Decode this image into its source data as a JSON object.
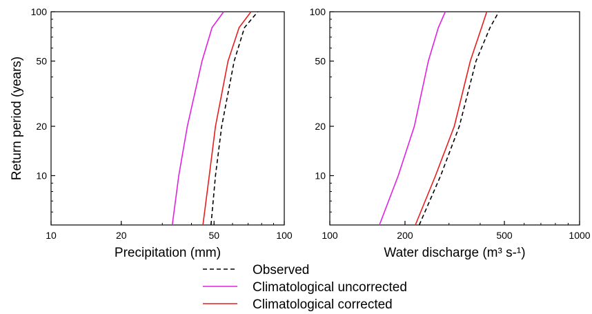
{
  "chart_data": [
    {
      "type": "line",
      "xscale": "log",
      "yscale": "log",
      "xlabel": "Precipitation (mm)",
      "ylabel": "Return period (years)",
      "xlim": [
        10,
        100
      ],
      "ylim": [
        5,
        100
      ],
      "xticks": [
        10,
        20,
        50,
        100
      ],
      "yticks": [
        10,
        20,
        50,
        100
      ],
      "grid": false,
      "series": [
        {
          "name": "Observed",
          "color": "#000000",
          "dash": "dashed",
          "points": [
            [
              48.5,
              5
            ],
            [
              50.7,
              10
            ],
            [
              53.9,
              20
            ],
            [
              61.0,
              50
            ],
            [
              67.5,
              80
            ],
            [
              77.0,
              100
            ]
          ]
        },
        {
          "name": "Climatological uncorrected",
          "color": "#e020e0",
          "dash": "solid",
          "points": [
            [
              33.1,
              5
            ],
            [
              35.3,
              10
            ],
            [
              38.4,
              20
            ],
            [
              44.4,
              50
            ],
            [
              49.0,
              80
            ],
            [
              55.0,
              100
            ]
          ]
        },
        {
          "name": "Climatological corrected",
          "color": "#e81c1c",
          "dash": "solid",
          "points": [
            [
              44.8,
              5
            ],
            [
              47.7,
              10
            ],
            [
              50.7,
              20
            ],
            [
              57.4,
              50
            ],
            [
              64.0,
              80
            ],
            [
              72.0,
              100
            ]
          ]
        }
      ]
    },
    {
      "type": "line",
      "xscale": "log",
      "yscale": "log",
      "xlabel": "Water discharge (m³ s-¹)",
      "ylabel": "",
      "xlim": [
        100,
        1000
      ],
      "ylim": [
        5,
        100
      ],
      "xticks": [
        100,
        200,
        500,
        1000
      ],
      "yticks": [
        10,
        20,
        50,
        100
      ],
      "grid": false,
      "series": [
        {
          "name": "Observed",
          "color": "#000000",
          "dash": "dashed",
          "points": [
            [
              228,
              5
            ],
            [
              278,
              10
            ],
            [
              330,
              20
            ],
            [
              385,
              50
            ],
            [
              438,
              80
            ],
            [
              475,
              100
            ]
          ]
        },
        {
          "name": "Climatological uncorrected",
          "color": "#e020e0",
          "dash": "solid",
          "points": [
            [
              158,
              5
            ],
            [
              188,
              10
            ],
            [
              218,
              20
            ],
            [
              248,
              50
            ],
            [
              272,
              80
            ],
            [
              290,
              100
            ]
          ]
        },
        {
          "name": "Climatological corrected",
          "color": "#e81c1c",
          "dash": "solid",
          "points": [
            [
              220,
              5
            ],
            [
              265,
              10
            ],
            [
              315,
              20
            ],
            [
              365,
              50
            ],
            [
              405,
              80
            ],
            [
              425,
              100
            ]
          ]
        }
      ]
    }
  ],
  "legend": {
    "placement": "bottom-center",
    "items": [
      {
        "label": "Observed",
        "color": "#000000",
        "dash": "dashed"
      },
      {
        "label": "Climatological uncorrected",
        "color": "#e020e0",
        "dash": "solid"
      },
      {
        "label": "Climatological corrected",
        "color": "#e81c1c",
        "dash": "solid"
      }
    ]
  }
}
